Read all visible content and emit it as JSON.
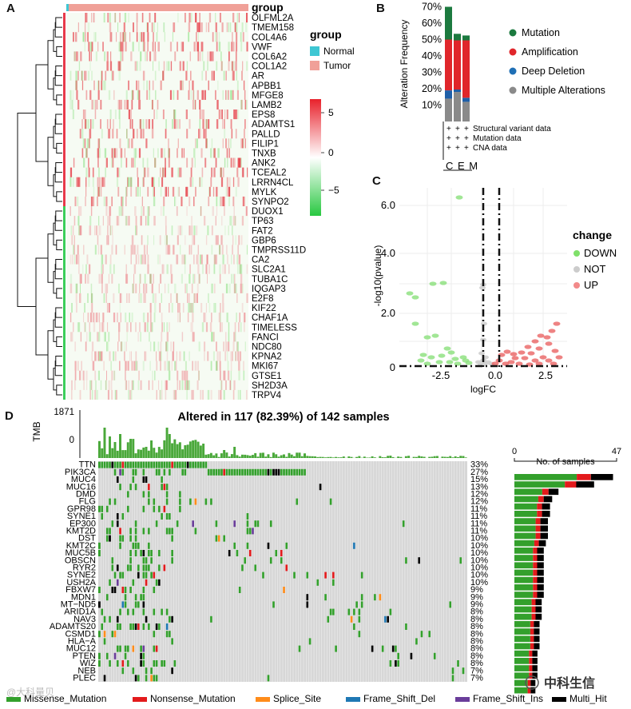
{
  "panels": {
    "a": "A",
    "b": "B",
    "c": "C",
    "d": "D"
  },
  "heatmap": {
    "genes": [
      "OLFML2A",
      "TMEM158",
      "COL4A6",
      "VWF",
      "COL6A2",
      "COL1A2",
      "AR",
      "APBB1",
      "MFGE8",
      "LAMB2",
      "EPS8",
      "ADAMTS1",
      "PALLD",
      "FILIP1",
      "TNXB",
      "ANK2",
      "TCEAL2",
      "LRRN4CL",
      "MYLK",
      "SYNPO2",
      "DUOX1",
      "TP63",
      "FAT2",
      "GBP6",
      "TMPRSS11D",
      "CA2",
      "SLC2A1",
      "TUBA1C",
      "IQGAP3",
      "E2F8",
      "KIF22",
      "CHAF1A",
      "TIMELESS",
      "FANCI",
      "NDC80",
      "KPNA2",
      "MKI67",
      "GTSE1",
      "SH2D3A",
      "TRPV4"
    ],
    "legend_group_title": "group",
    "group_labels": [
      "Normal",
      "Tumor"
    ],
    "group_colors": {
      "Normal": "#3ec7d3",
      "Tumor": "#f0a098"
    },
    "scale_ticks": [
      "5",
      "0",
      "−5"
    ],
    "colors": {
      "high": "#e8212b",
      "mid": "#ffffff",
      "low": "#28c840"
    }
  },
  "alteration": {
    "ylabel": "Alteration Frequency",
    "yticks": [
      "70%",
      "60%",
      "50%",
      "40%",
      "30%",
      "20%",
      "10%"
    ],
    "bars": [
      {
        "mutation": 20,
        "amplification": 31,
        "deep_deletion": 5,
        "multiple": 14
      },
      {
        "mutation": 4,
        "amplification": 30,
        "deep_deletion": 1.5,
        "multiple": 18
      },
      {
        "mutation": 3,
        "amplification": 35,
        "deep_deletion": 2.5,
        "multiple": 12
      }
    ],
    "rows": [
      "Structural variant data",
      "Mutation data",
      "CNA data"
    ],
    "plus": "+",
    "cancers": "C E M",
    "legend": [
      {
        "label": "Mutation",
        "color": "#1c7a3f"
      },
      {
        "label": "Amplification",
        "color": "#e0262b"
      },
      {
        "label": "Deep Deletion",
        "color": "#1f6fb5"
      },
      {
        "label": "Multiple Alterations",
        "color": "#8a8a8a"
      }
    ]
  },
  "volcano": {
    "xlabel": "logFC",
    "ylabel": "-log10(pvalue)",
    "xticks": [
      "-2.5",
      "0.0",
      "2.5"
    ],
    "yticks": [
      "6.0",
      "4.0",
      "2.0",
      "0"
    ],
    "legend_title": "change",
    "legend": [
      {
        "label": "DOWN",
        "color": "#7fe06a"
      },
      {
        "label": "NOT",
        "color": "#cccccc"
      },
      {
        "label": "UP",
        "color": "#f28a8a"
      }
    ]
  },
  "oncoplot": {
    "title": "Altered in 117 (82.39%) of 142 samples",
    "tmb_label": "TMB",
    "tmb_max": "1871",
    "tmb_min": "0",
    "samples_axis": {
      "min": "0",
      "max": "47",
      "label": "No. of samples"
    },
    "genes": [
      {
        "name": "TTN",
        "pct": "33%"
      },
      {
        "name": "PIK3CA",
        "pct": "27%"
      },
      {
        "name": "MUC4",
        "pct": "15%"
      },
      {
        "name": "MUC16",
        "pct": "13%"
      },
      {
        "name": "DMD",
        "pct": "12%"
      },
      {
        "name": "FLG",
        "pct": "12%"
      },
      {
        "name": "GPR98",
        "pct": "11%"
      },
      {
        "name": "SYNE1",
        "pct": "11%"
      },
      {
        "name": "EP300",
        "pct": "11%"
      },
      {
        "name": "KMT2D",
        "pct": "11%"
      },
      {
        "name": "DST",
        "pct": "10%"
      },
      {
        "name": "KMT2C",
        "pct": "10%"
      },
      {
        "name": "MUC5B",
        "pct": "10%"
      },
      {
        "name": "OBSCN",
        "pct": "10%"
      },
      {
        "name": "RYR2",
        "pct": "10%"
      },
      {
        "name": "SYNE2",
        "pct": "10%"
      },
      {
        "name": "USH2A",
        "pct": "10%"
      },
      {
        "name": "FBXW7",
        "pct": "9%"
      },
      {
        "name": "MDN1",
        "pct": "9%"
      },
      {
        "name": "MT−ND5",
        "pct": "9%"
      },
      {
        "name": "ARID1A",
        "pct": "8%"
      },
      {
        "name": "NAV3",
        "pct": "8%"
      },
      {
        "name": "ADAMTS20",
        "pct": "8%"
      },
      {
        "name": "CSMD1",
        "pct": "8%"
      },
      {
        "name": "HLA−A",
        "pct": "8%"
      },
      {
        "name": "MUC12",
        "pct": "8%"
      },
      {
        "name": "PTEN",
        "pct": "8%"
      },
      {
        "name": "WIZ",
        "pct": "8%"
      },
      {
        "name": "NEB",
        "pct": "7%"
      },
      {
        "name": "PLEC",
        "pct": "7%"
      }
    ],
    "legend": [
      {
        "label": "Missense_Mutation",
        "color": "#33a02c"
      },
      {
        "label": "Nonsense_Mutation",
        "color": "#e31a1c"
      },
      {
        "label": "Splice_Site",
        "color": "#ff8c1a"
      },
      {
        "label": "Frame_Shift_Del",
        "color": "#1f78b4"
      },
      {
        "label": "Frame_Shift_Ins",
        "color": "#6a3d9a"
      },
      {
        "label": "Multi_Hit",
        "color": "#000000"
      }
    ]
  },
  "watermark": {
    "left": "@大科量贝",
    "right": "中科生信"
  }
}
